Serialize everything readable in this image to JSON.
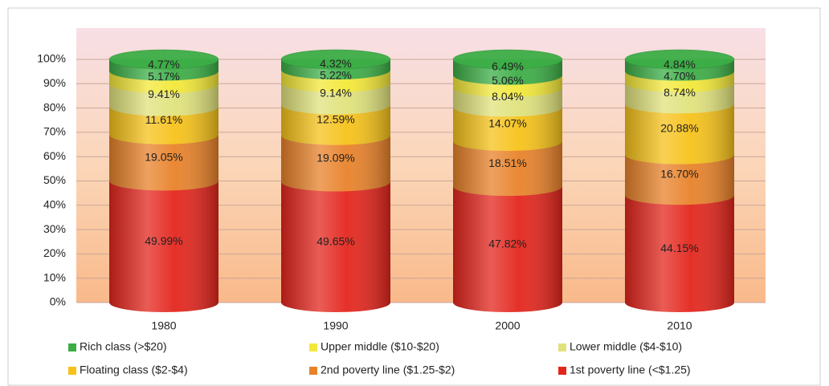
{
  "chart_data": {
    "type": "stacked-cylinder",
    "categories": [
      "1980",
      "1990",
      "2000",
      "2010"
    ],
    "ylim": [
      0,
      100
    ],
    "yticks": [
      {
        "value": 0,
        "label": "0%"
      },
      {
        "value": 10,
        "label": "10%"
      },
      {
        "value": 20,
        "label": "20%"
      },
      {
        "value": 30,
        "label": "30%"
      },
      {
        "value": 40,
        "label": "40%"
      },
      {
        "value": 50,
        "label": "50%"
      },
      {
        "value": 60,
        "label": "60%"
      },
      {
        "value": 70,
        "label": "70%"
      },
      {
        "value": 80,
        "label": "80%"
      },
      {
        "value": 90,
        "label": "90%"
      },
      {
        "value": 100,
        "label": "100%"
      }
    ],
    "grid": true,
    "series": [
      {
        "name": "1st poverty line (<$1.25)",
        "color": "#e3261d",
        "values": [
          49.99,
          49.65,
          47.82,
          44.15
        ],
        "value_labels": [
          "49.99%",
          "49.65%",
          "47.82%",
          "44.15%"
        ]
      },
      {
        "name": "2nd poverty line ($1.25-$2)",
        "color": "#e8822a",
        "values": [
          19.05,
          19.09,
          18.51,
          16.7
        ],
        "value_labels": [
          "19.05%",
          "19.09%",
          "18.51%",
          "16.70%"
        ]
      },
      {
        "name": "Floating class ($2-$4)",
        "color": "#f6c21a",
        "values": [
          11.61,
          12.59,
          14.07,
          20.88
        ],
        "value_labels": [
          "11.61%",
          "12.59%",
          "14.07%",
          "20.88%"
        ]
      },
      {
        "name": "Lower middle ($4-$10)",
        "color": "#e0e27c",
        "values": [
          9.41,
          9.14,
          8.04,
          8.74
        ],
        "value_labels": [
          "9.41%",
          "9.14%",
          "8.04%",
          "8.74%"
        ]
      },
      {
        "name": "Upper middle ($10-$20)",
        "color": "#f3e839",
        "values": [
          5.17,
          5.22,
          5.06,
          4.7
        ],
        "value_labels": [
          "5.17%",
          "5.22%",
          "5.06%",
          "4.70%"
        ]
      },
      {
        "name": "Rich class (>$20)",
        "color": "#3cae46",
        "values": [
          4.77,
          4.32,
          6.49,
          4.84
        ],
        "value_labels": [
          "4.77%",
          "4.32%",
          "6.49%",
          "4.84%"
        ]
      }
    ],
    "legend": "bottom"
  }
}
